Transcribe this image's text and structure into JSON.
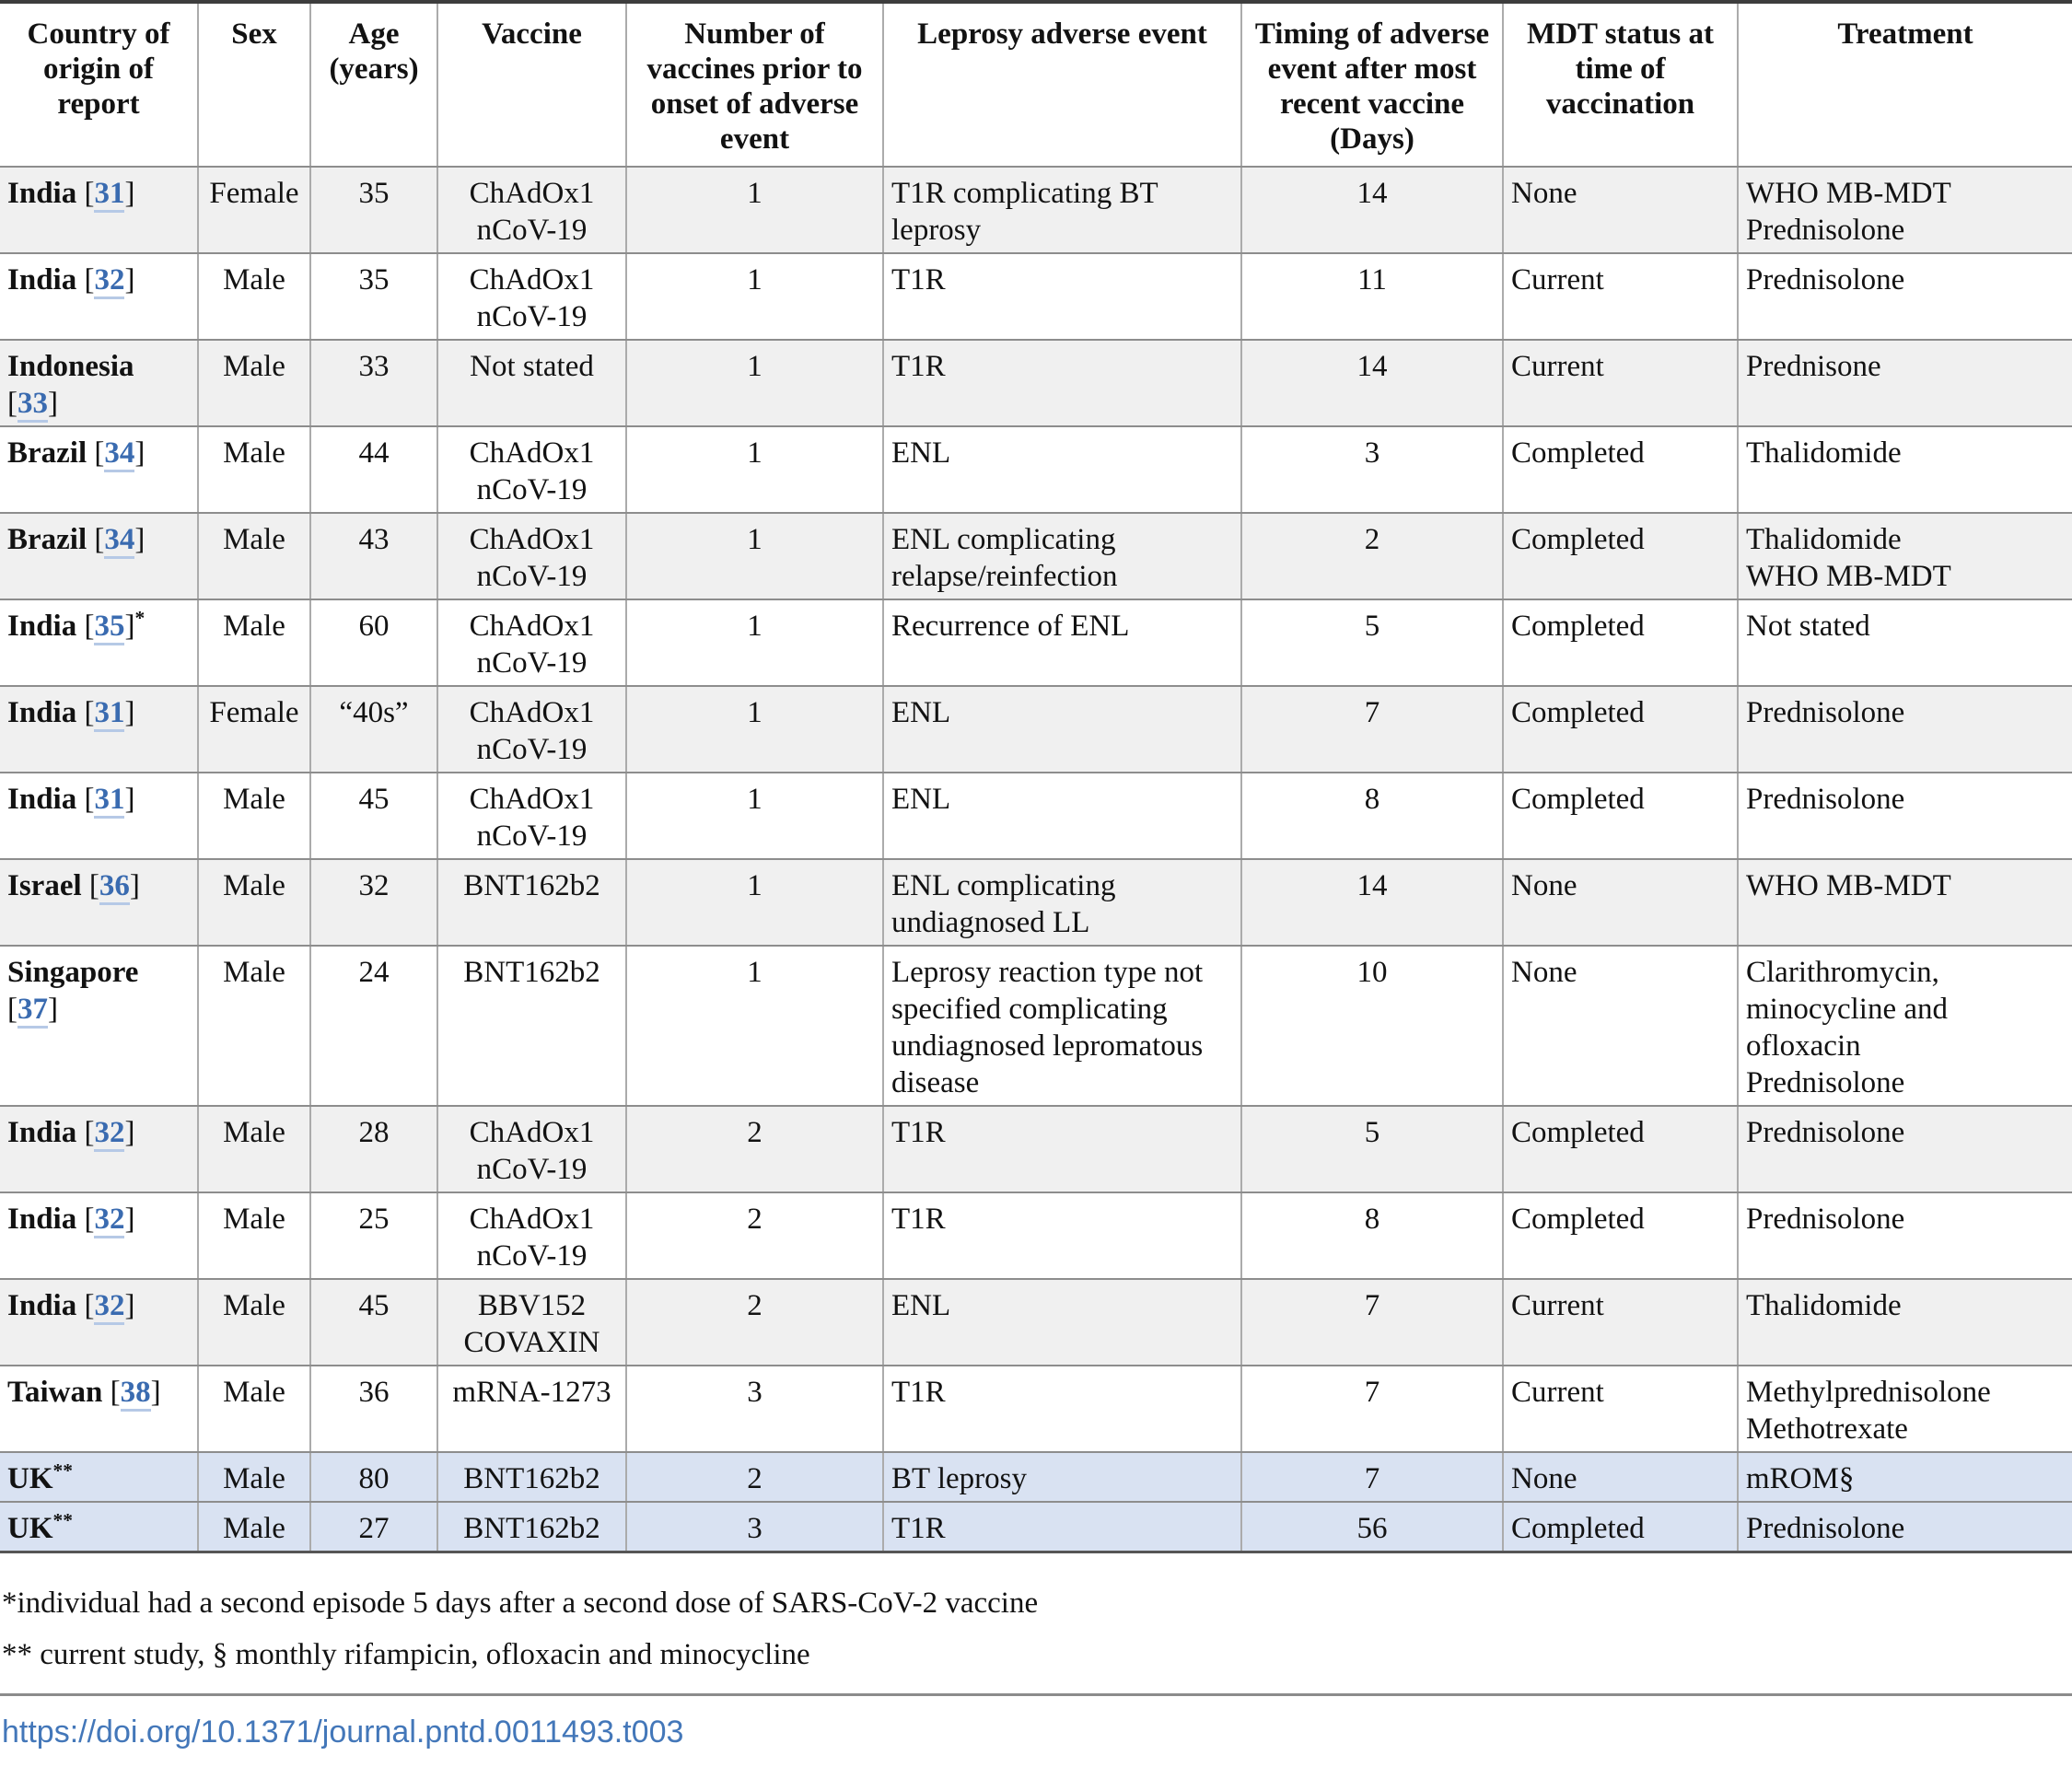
{
  "table": {
    "headers": [
      "Country of origin of report",
      "Sex",
      "Age (years)",
      "Vaccine",
      "Number of vaccines prior to onset of adverse event",
      "Leprosy adverse event",
      "Timing of adverse event after most recent vaccine (Days)",
      "MDT status at time of vaccination",
      "Treatment"
    ],
    "rows": [
      {
        "country": "India",
        "ref": "31",
        "note": "",
        "sex": "Female",
        "age": "35",
        "vaccine": "ChAdOx1 nCoV-19",
        "doses": "1",
        "event": "T1R complicating BT leprosy",
        "timing": "14",
        "mdt": "None",
        "treatment": "WHO MB-MDT\nPrednisolone",
        "shade": "grey"
      },
      {
        "country": "India",
        "ref": "32",
        "note": "",
        "sex": "Male",
        "age": "35",
        "vaccine": "ChAdOx1 nCoV-19",
        "doses": "1",
        "event": "T1R",
        "timing": "11",
        "mdt": "Current",
        "treatment": "Prednisolone",
        "shade": "white"
      },
      {
        "country": "Indonesia",
        "ref": "33",
        "note": "",
        "sex": "Male",
        "age": "33",
        "vaccine": "Not stated",
        "doses": "1",
        "event": "T1R",
        "timing": "14",
        "mdt": "Current",
        "treatment": "Prednisone",
        "shade": "grey"
      },
      {
        "country": "Brazil",
        "ref": "34",
        "note": "",
        "sex": "Male",
        "age": "44",
        "vaccine": "ChAdOx1 nCoV-19",
        "doses": "1",
        "event": "ENL",
        "timing": "3",
        "mdt": "Completed",
        "treatment": "Thalidomide",
        "shade": "white"
      },
      {
        "country": "Brazil",
        "ref": "34",
        "note": "",
        "sex": "Male",
        "age": "43",
        "vaccine": "ChAdOx1 nCoV-19",
        "doses": "1",
        "event": "ENL complicating relapse/reinfection",
        "timing": "2",
        "mdt": "Completed",
        "treatment": "Thalidomide\nWHO MB-MDT",
        "shade": "grey"
      },
      {
        "country": "India",
        "ref": "35",
        "note": "*",
        "sex": "Male",
        "age": "60",
        "vaccine": "ChAdOx1 nCoV-19",
        "doses": "1",
        "event": "Recurrence of ENL",
        "timing": "5",
        "mdt": "Completed",
        "treatment": "Not stated",
        "shade": "white"
      },
      {
        "country": "India",
        "ref": "31",
        "note": "",
        "sex": "Female",
        "age": "“40s”",
        "vaccine": "ChAdOx1 nCoV-19",
        "doses": "1",
        "event": "ENL",
        "timing": "7",
        "mdt": "Completed",
        "treatment": "Prednisolone",
        "shade": "grey"
      },
      {
        "country": "India",
        "ref": "31",
        "note": "",
        "sex": "Male",
        "age": "45",
        "vaccine": "ChAdOx1 nCoV-19",
        "doses": "1",
        "event": "ENL",
        "timing": "8",
        "mdt": "Completed",
        "treatment": "Prednisolone",
        "shade": "white"
      },
      {
        "country": "Israel",
        "ref": "36",
        "note": "",
        "sex": "Male",
        "age": "32",
        "vaccine": "BNT162b2",
        "doses": "1",
        "event": "ENL complicating undiagnosed LL",
        "timing": "14",
        "mdt": "None",
        "treatment": "WHO MB-MDT",
        "shade": "grey"
      },
      {
        "country": "Singapore",
        "ref": "37",
        "note": "",
        "sex": "Male",
        "age": "24",
        "vaccine": "BNT162b2",
        "doses": "1",
        "event": "Leprosy reaction type not specified complicating undiagnosed lepromatous disease",
        "timing": "10",
        "mdt": "None",
        "treatment": "Clarithromycin, minocycline and ofloxacin\nPrednisolone",
        "shade": "white"
      },
      {
        "country": "India",
        "ref": "32",
        "note": "",
        "sex": "Male",
        "age": "28",
        "vaccine": "ChAdOx1 nCoV-19",
        "doses": "2",
        "event": "T1R",
        "timing": "5",
        "mdt": "Completed",
        "treatment": "Prednisolone",
        "shade": "grey"
      },
      {
        "country": "India",
        "ref": "32",
        "note": "",
        "sex": "Male",
        "age": "25",
        "vaccine": "ChAdOx1 nCoV-19",
        "doses": "2",
        "event": "T1R",
        "timing": "8",
        "mdt": "Completed",
        "treatment": "Prednisolone",
        "shade": "white"
      },
      {
        "country": "India",
        "ref": "32",
        "note": "",
        "sex": "Male",
        "age": "45",
        "vaccine": "BBV152 COVAXIN",
        "doses": "2",
        "event": "ENL",
        "timing": "7",
        "mdt": "Current",
        "treatment": "Thalidomide",
        "shade": "grey"
      },
      {
        "country": "Taiwan",
        "ref": "38",
        "note": "",
        "sex": "Male",
        "age": "36",
        "vaccine": "mRNA-1273",
        "doses": "3",
        "event": "T1R",
        "timing": "7",
        "mdt": "Current",
        "treatment": "Methylprednisolone\nMethotrexate",
        "shade": "white"
      },
      {
        "country": "UK",
        "ref": "",
        "note": "**",
        "sex": "Male",
        "age": "80",
        "vaccine": "BNT162b2",
        "doses": "2",
        "event": "BT leprosy",
        "timing": "7",
        "mdt": "None",
        "treatment": "mROM§",
        "shade": "blue"
      },
      {
        "country": "UK",
        "ref": "",
        "note": "**",
        "sex": "Male",
        "age": "27",
        "vaccine": "BNT162b2",
        "doses": "3",
        "event": "T1R",
        "timing": "56",
        "mdt": "Completed",
        "treatment": "Prednisolone",
        "shade": "blue"
      }
    ]
  },
  "footnotes": [
    "*individual had a second episode 5 days after a second dose of SARS-CoV-2 vaccine",
    "** current study, § monthly rifampicin, ofloxacin and minocycline"
  ],
  "doi_link": "https://doi.org/10.1371/journal.pntd.0011493.t003",
  "colors": {
    "ref_blue": "#3a6bb0",
    "doi_blue": "#4377b9",
    "row_grey": "#f0f0f0",
    "row_blue": "#d9e2f2"
  }
}
